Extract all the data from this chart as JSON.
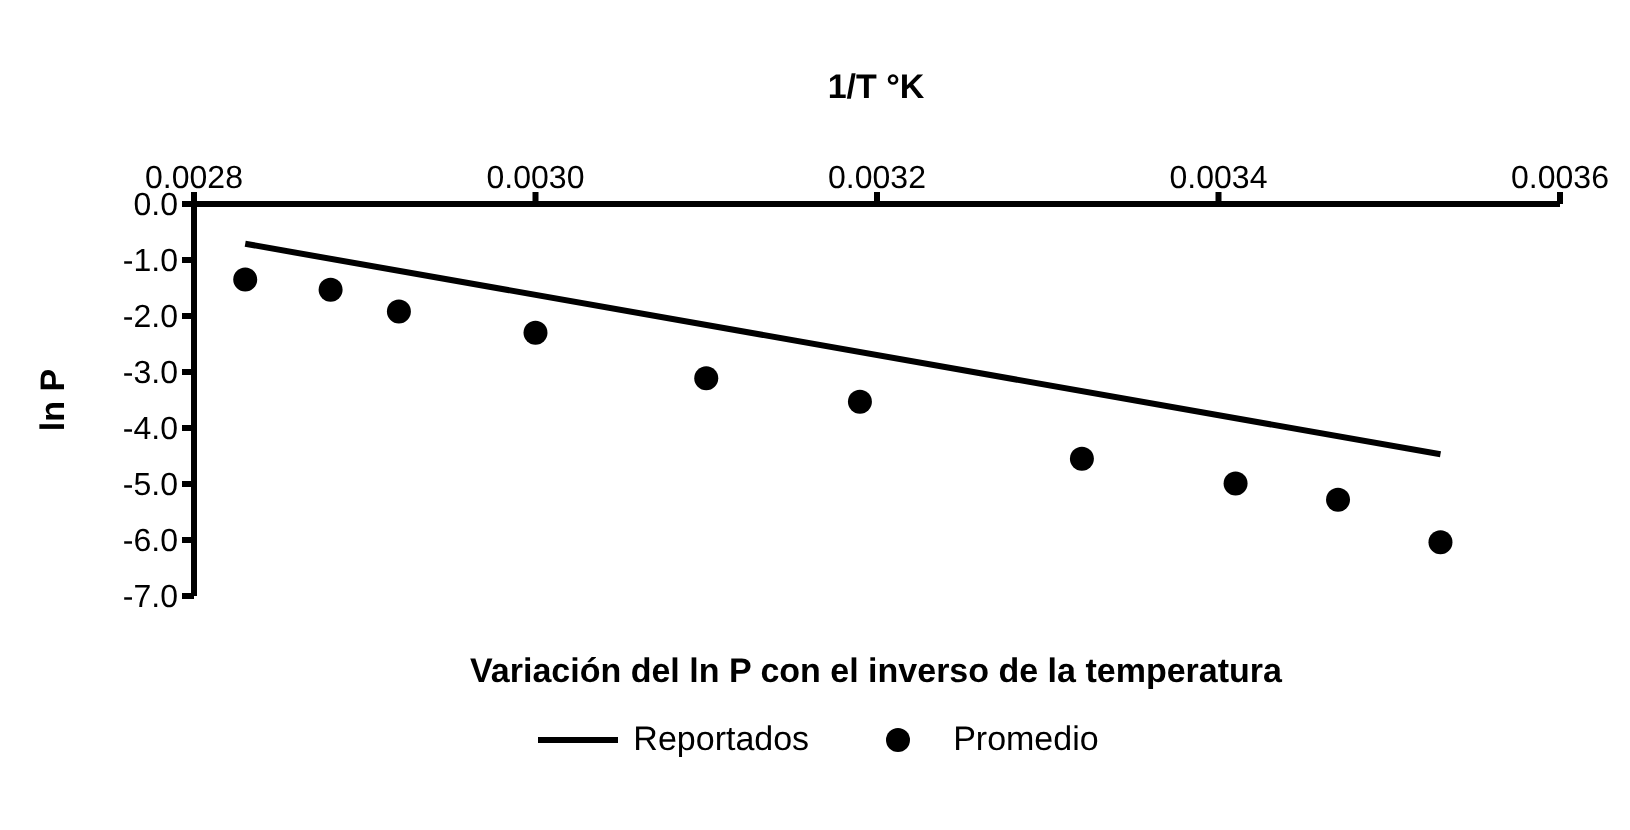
{
  "chart_data": {
    "type": "scatter",
    "title": "Variación del ln P con el inverso de la temperatura",
    "xlabel": "1/T °K",
    "ylabel": "ln P",
    "xlim": [
      0.0028,
      0.0036
    ],
    "xticks": [
      {
        "value": 0.0028,
        "label": "0.0028"
      },
      {
        "value": 0.003,
        "label": "0.0030"
      },
      {
        "value": 0.0032,
        "label": "0.0032"
      },
      {
        "value": 0.0034,
        "label": "0.0034"
      },
      {
        "value": 0.0036,
        "label": "0.0036"
      }
    ],
    "ylim": [
      -7,
      0
    ],
    "yticks": [
      {
        "value": 0,
        "label": "0.0"
      },
      {
        "value": -1,
        "label": "-1.0"
      },
      {
        "value": -2,
        "label": "-2.0"
      },
      {
        "value": -3,
        "label": "-3.0"
      },
      {
        "value": -4,
        "label": "-4.0"
      },
      {
        "value": -5,
        "label": "-5.0"
      },
      {
        "value": -6,
        "label": "-6.0"
      },
      {
        "value": -7,
        "label": "-7.0"
      }
    ],
    "grid": false,
    "legend": "bottom",
    "series": [
      {
        "name": "Reportados",
        "type": "line",
        "color": "#000000",
        "marker": "none",
        "line_style": "solid",
        "x": [
          0.00283,
          0.00353
        ],
        "values": [
          -0.71,
          -4.47
        ]
      },
      {
        "name": "Promedio",
        "color": "#000000",
        "marker": "circle",
        "x": [
          0.00283,
          0.00288,
          0.00292,
          0.003,
          0.0031,
          0.00319,
          0.00332,
          0.00341,
          0.00347,
          0.00353
        ],
        "values": [
          -1.35,
          -1.53,
          -1.92,
          -2.3,
          -3.11,
          -3.53,
          -4.55,
          -4.99,
          -5.28,
          -6.04
        ]
      }
    ]
  }
}
